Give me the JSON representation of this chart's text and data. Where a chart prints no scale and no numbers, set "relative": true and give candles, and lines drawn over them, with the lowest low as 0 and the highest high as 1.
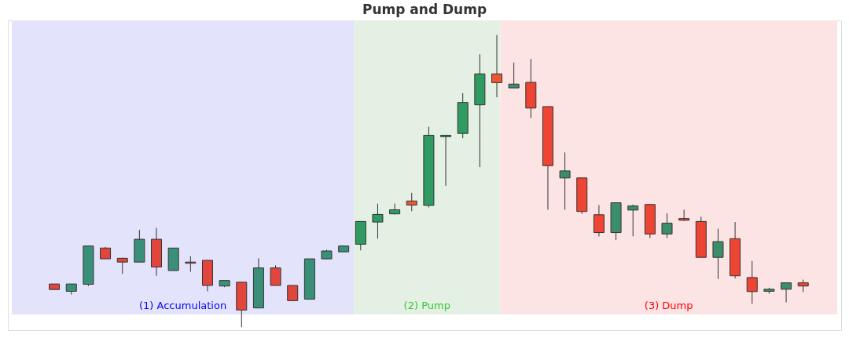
{
  "chart_data": {
    "type": "candlestick",
    "title": "Pump and Dump",
    "relative": true,
    "categories": [
      null,
      null,
      null,
      null,
      null,
      null,
      null,
      null,
      null,
      null,
      null,
      null,
      null,
      null,
      null,
      null,
      null,
      null,
      null,
      null,
      null,
      null,
      null,
      null,
      null,
      null,
      null,
      null,
      null,
      null,
      null,
      null,
      null,
      null,
      null,
      null,
      null,
      null,
      null,
      null,
      null,
      null,
      null,
      null,
      null
    ],
    "ohlc": [
      [
        0.148,
        0.148,
        0.129,
        0.129
      ],
      [
        0.123,
        0.148,
        0.112,
        0.148
      ],
      [
        0.147,
        0.278,
        0.141,
        0.278
      ],
      [
        0.271,
        0.275,
        0.234,
        0.234
      ],
      [
        0.236,
        0.238,
        0.183,
        0.223
      ],
      [
        0.223,
        0.333,
        0.223,
        0.301
      ],
      [
        0.301,
        0.34,
        0.176,
        0.206
      ],
      [
        0.194,
        0.271,
        0.194,
        0.271
      ],
      [
        0.223,
        0.243,
        0.19,
        0.219
      ],
      [
        0.229,
        0.229,
        0.123,
        0.143
      ],
      [
        0.141,
        0.16,
        0.137,
        0.16
      ],
      [
        0.154,
        0.154,
        0,
        0.059
      ],
      [
        0.066,
        0.236,
        0.066,
        0.203
      ],
      [
        0.203,
        0.212,
        0.143,
        0.143
      ],
      [
        0.143,
        0.143,
        0.091,
        0.091
      ],
      [
        0.096,
        0.234,
        0.096,
        0.234
      ],
      [
        0.234,
        0.265,
        0.234,
        0.261
      ],
      [
        0.258,
        0.278,
        0.258,
        0.278
      ],
      [
        0.284,
        0.362,
        0.263,
        0.362
      ],
      [
        0.36,
        0.423,
        0.303,
        0.386
      ],
      [
        0.388,
        0.423,
        0.386,
        0.402
      ],
      [
        0.432,
        0.46,
        0.397,
        0.418
      ],
      [
        0.417,
        0.686,
        0.41,
        0.657
      ],
      [
        0.652,
        0.657,
        0.484,
        0.657
      ],
      [
        0.663,
        0.801,
        0.647,
        0.769
      ],
      [
        0.761,
        0.934,
        0.548,
        0.867
      ],
      [
        0.867,
        1,
        0.787,
        0.837
      ],
      [
        0.819,
        0.906,
        0.819,
        0.832
      ],
      [
        0.838,
        0.918,
        0.716,
        0.75
      ],
      [
        0.755,
        0.755,
        0.402,
        0.553
      ],
      [
        0.511,
        0.598,
        0.402,
        0.535
      ],
      [
        0.511,
        0.511,
        0.388,
        0.396
      ],
      [
        0.385,
        0.418,
        0.311,
        0.324
      ],
      [
        0.324,
        0.426,
        0.298,
        0.426
      ],
      [
        0.401,
        0.42,
        0.311,
        0.415
      ],
      [
        0.42,
        0.42,
        0.305,
        0.319
      ],
      [
        0.319,
        0.39,
        0.305,
        0.356
      ],
      [
        0.372,
        0.402,
        0.364,
        0.366
      ],
      [
        0.362,
        0.378,
        0.239,
        0.239
      ],
      [
        0.239,
        0.337,
        0.165,
        0.293
      ],
      [
        0.303,
        0.36,
        0.167,
        0.176
      ],
      [
        0.17,
        0.227,
        0.08,
        0.122
      ],
      [
        0.123,
        0.135,
        0.115,
        0.13
      ],
      [
        0.13,
        0.152,
        0.085,
        0.152
      ],
      [
        0.152,
        0.163,
        0.12,
        0.141
      ]
    ],
    "colors": [
      "#e0463c",
      "#3a8f78",
      "#3a8f78",
      "#e0463c",
      "#e0463c",
      "#3a8f78",
      "#e0463c",
      "#3a8f78",
      "#e0463c",
      "#e0463c",
      "#3a8f78",
      "#e0463c",
      "#3a8f78",
      "#e0463c",
      "#e0463c",
      "#3a8f78",
      "#3a8f78",
      "#3a8f78",
      "#2f9a62",
      "#2f9a62",
      "#2f9a62",
      "#ee5533",
      "#2f9a62",
      "#2f9a62",
      "#2f9a62",
      "#2f9a62",
      "#ee5533",
      "#3a8f6a",
      "#ee4433",
      "#ee4433",
      "#3a8f6a",
      "#ee4433",
      "#ee4433",
      "#3a8f6a",
      "#3a8f6a",
      "#ee4433",
      "#3a8f6a",
      "#ee4433",
      "#ee4433",
      "#3a8f6a",
      "#ee4433",
      "#ee4433",
      "#3a8f6a",
      "#3a8f6a",
      "#ee4433"
    ],
    "annotations": [
      "(1) Accumulation",
      "(2) Pump",
      "(3) Dump"
    ]
  }
}
